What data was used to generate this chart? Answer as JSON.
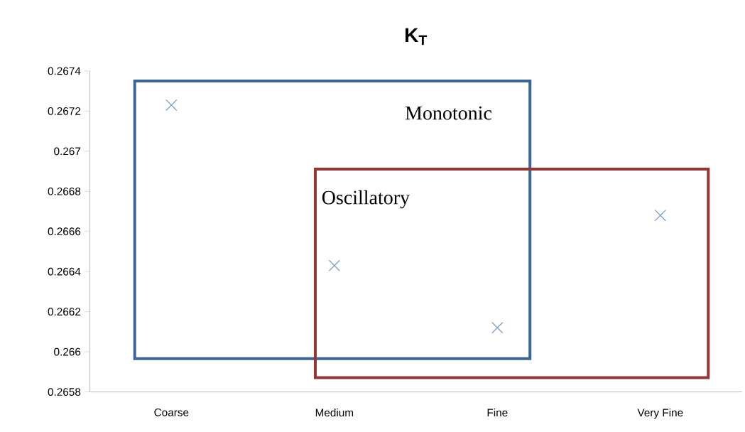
{
  "chart_data": {
    "type": "scatter",
    "title": "K$_{T}$",
    "categories": [
      "Coarse",
      "Medium",
      "Fine",
      "Very Fine"
    ],
    "values": [
      0.26723,
      0.26643,
      0.26612,
      0.26668
    ],
    "color": "#7f9fcf",
    "marker": "cross",
    "ylim": [
      0.2658,
      0.2674
    ],
    "yticks": [
      0.2658,
      0.266,
      0.2662,
      0.2664,
      0.2666,
      0.2668,
      0.267,
      0.2672,
      0.2674
    ],
    "grid": false,
    "annotations": [
      "Monotonic",
      "Oscillatory"
    ]
  }
}
